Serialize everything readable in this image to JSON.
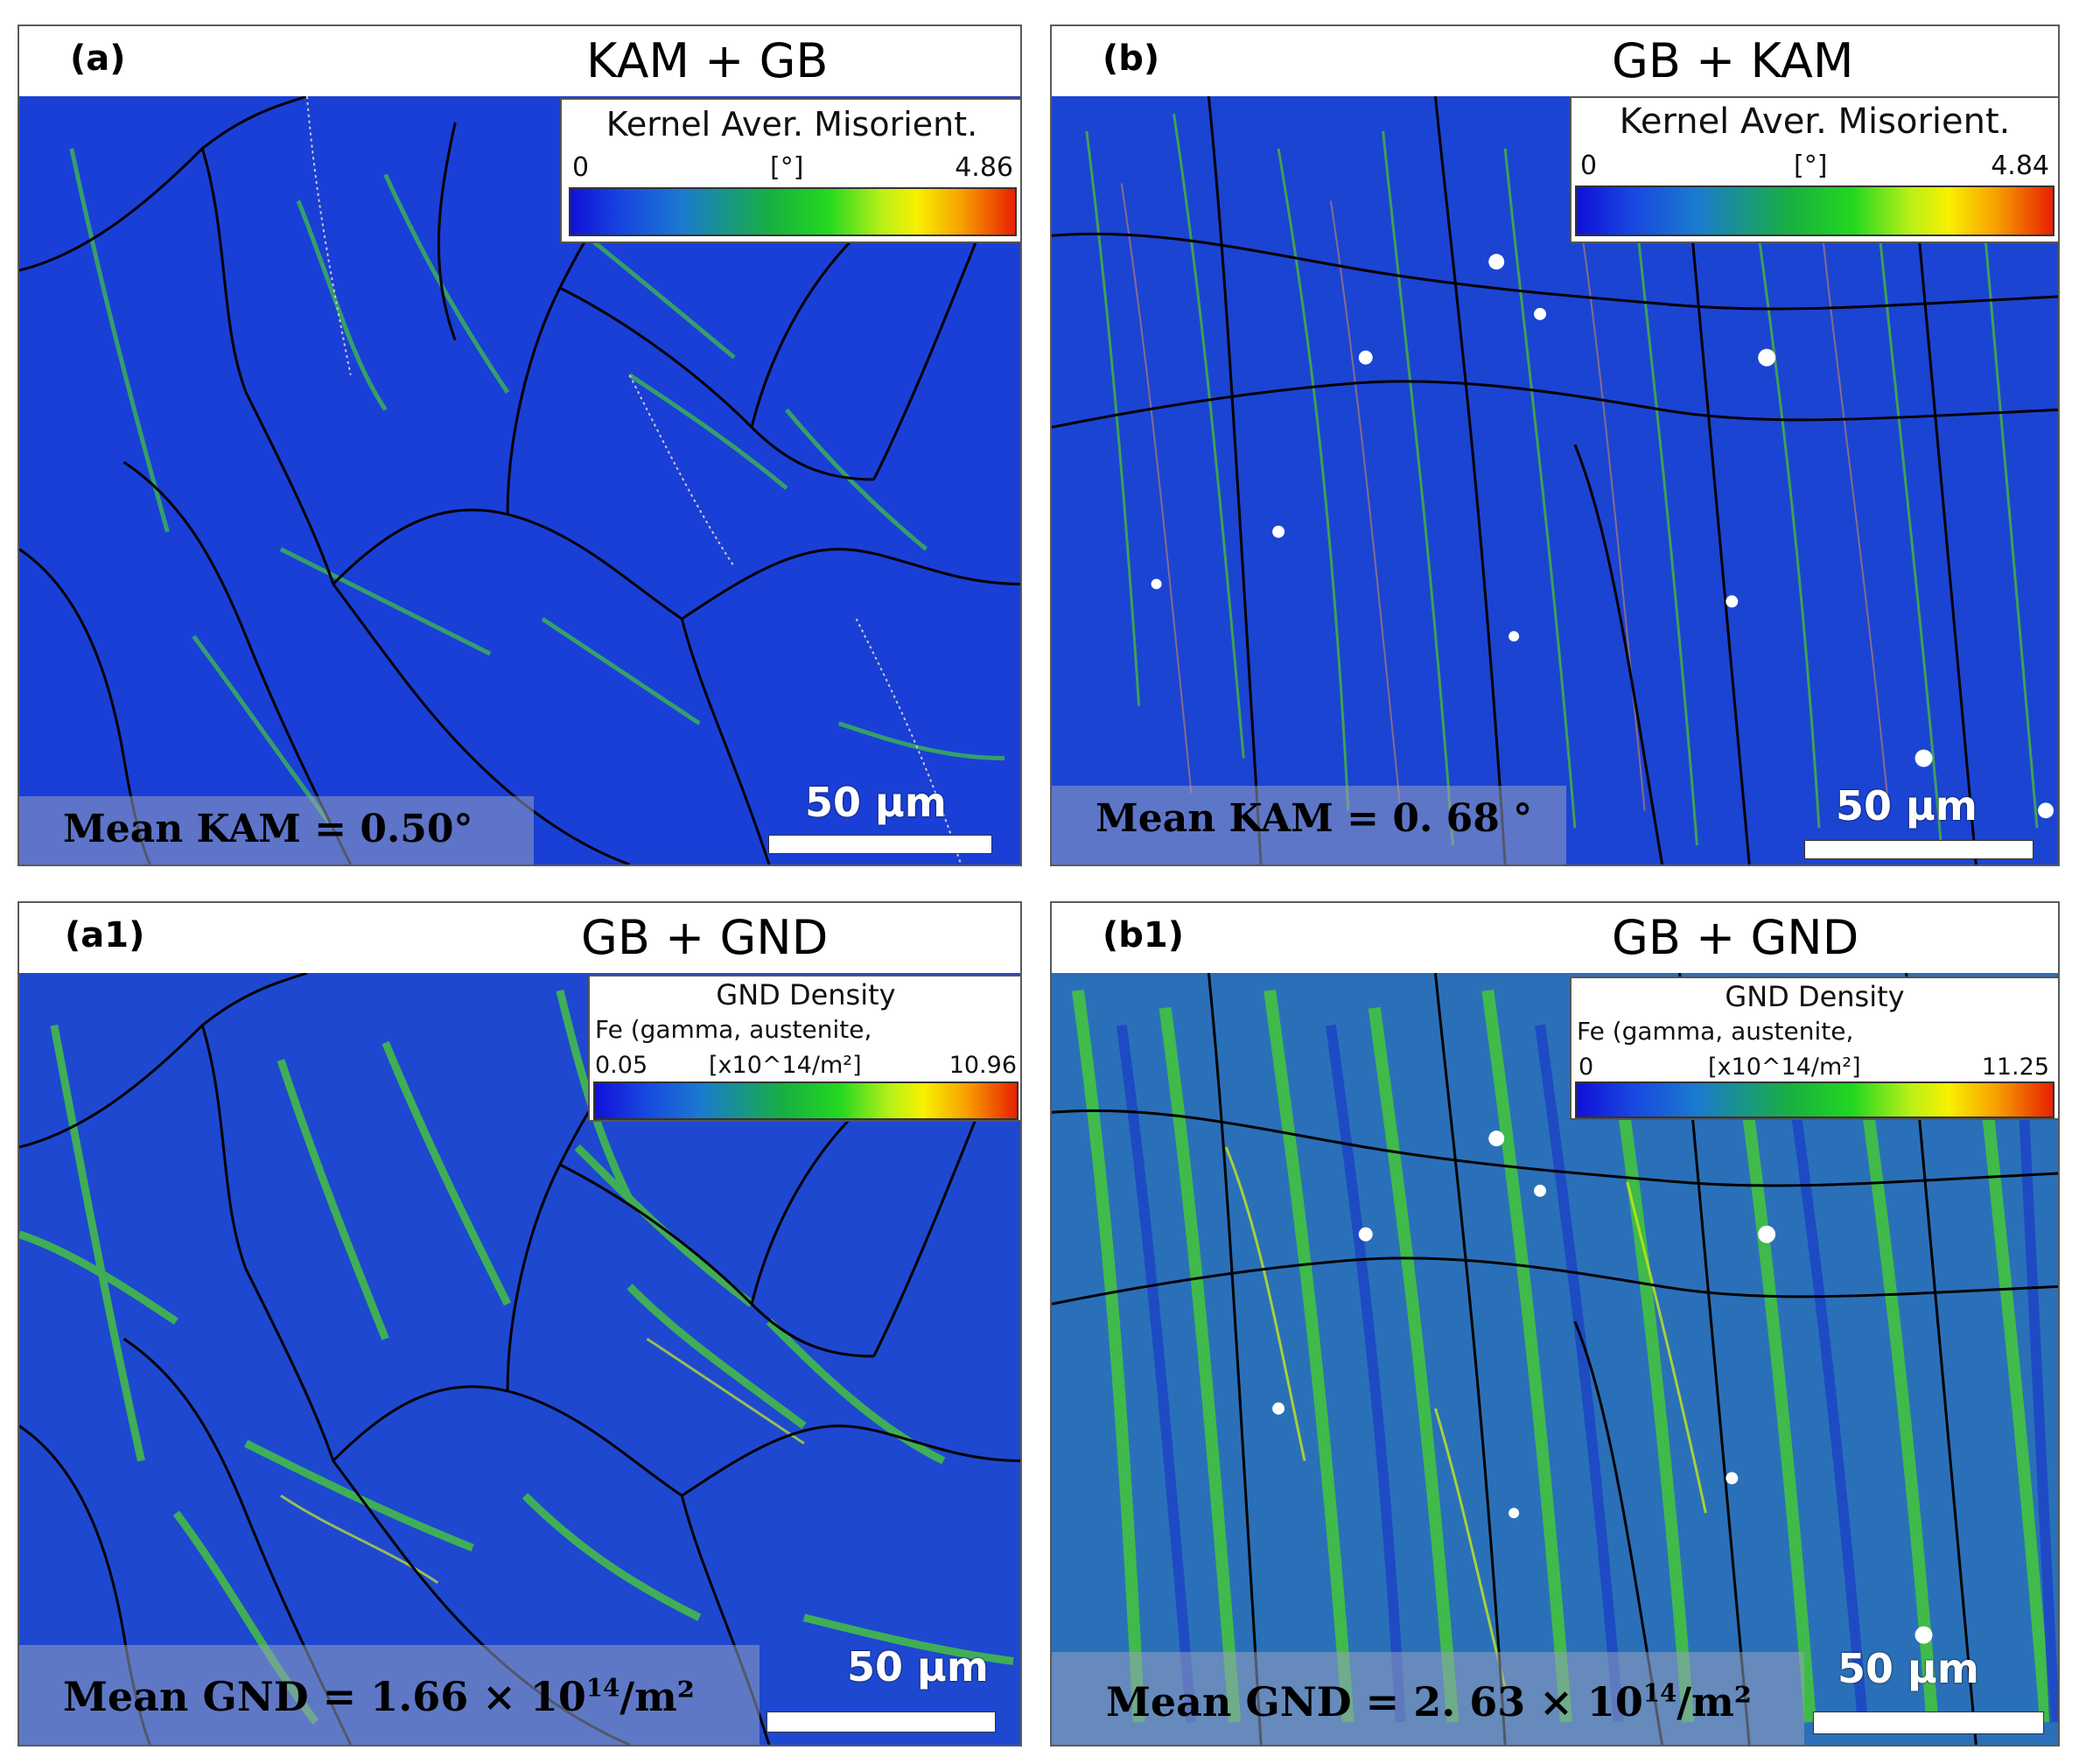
{
  "panels": {
    "a": {
      "label": "(a)",
      "title": "KAM + GB",
      "legend": {
        "title": "Kernel Aver. Misorient.",
        "subtitle": "",
        "min": "0",
        "unit": "[°]",
        "max": "4.86"
      },
      "mean": {
        "prefix": "Mean KAM = 0.50°",
        "exp": "",
        "suffix": ""
      },
      "scale": "50 μm"
    },
    "b": {
      "label": "(b)",
      "title": "GB + KAM",
      "legend": {
        "title": "Kernel Aver. Misorient.",
        "subtitle": "",
        "min": "0",
        "unit": "[°]",
        "max": "4.84"
      },
      "mean": {
        "prefix": "Mean KAM = 0. 68 °",
        "exp": "",
        "suffix": ""
      },
      "scale": "50 μm"
    },
    "a1": {
      "label": "(a1)",
      "title": "GB + GND",
      "legend": {
        "title": "GND Density",
        "subtitle": "Fe (gamma, austenite,",
        "min": "0.05",
        "unit": "[x10^14/m²]",
        "max": "10.96"
      },
      "mean": {
        "prefix": "Mean GND = 1.66 × 10",
        "exp": "14",
        "suffix": "/m²"
      },
      "scale": "50 μm"
    },
    "b1": {
      "label": "(b1)",
      "title": "GB + GND",
      "legend": {
        "title": "GND Density",
        "subtitle": "Fe (gamma, austenite,",
        "min": "0",
        "unit": "[x10^14/m²]",
        "max": "11.25"
      },
      "mean": {
        "prefix": "Mean GND = 2. 63 × 10",
        "exp": "14",
        "suffix": "/m²"
      },
      "scale": "50 μm"
    }
  },
  "colors": {
    "map_base": "#1a3fd6",
    "map_low_green": "#2f9a40",
    "map_high_green": "#46d21e",
    "grain_boundary": "#000000",
    "subgrain_boundary": "#a08080"
  }
}
